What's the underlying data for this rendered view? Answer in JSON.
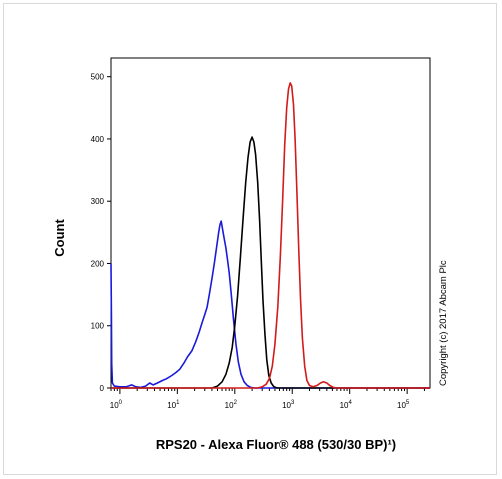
{
  "chart_data": {
    "type": "line",
    "title": "",
    "xlabel": "RPS20 - Alexa Fluor® 488 (530/30 BP)¹)",
    "ylabel": "Count",
    "xscale": "log",
    "xlim": [
      0.7,
      250000
    ],
    "ylim": [
      0,
      530
    ],
    "grid": false,
    "legend": "none",
    "x_tick_labels": [
      {
        "value": 1,
        "base": "10",
        "exp": "0"
      },
      {
        "value": 10,
        "base": "10",
        "exp": "1"
      },
      {
        "value": 100,
        "base": "10",
        "exp": "2"
      },
      {
        "value": 1000,
        "base": "10",
        "exp": "3"
      },
      {
        "value": 10000,
        "base": "10",
        "exp": "4"
      },
      {
        "value": 100000,
        "base": "10",
        "exp": "5"
      }
    ],
    "y_ticks": [
      0,
      100,
      200,
      300,
      400,
      500
    ],
    "y_tick_labels": [
      "0",
      "100",
      "200",
      "300",
      "400",
      "500"
    ],
    "annotation": "Copyright (c) 2017 Abcam Plc",
    "series": [
      {
        "color": "#1a1adb",
        "points": [
          [
            0.7,
            200
          ],
          [
            0.71,
            120
          ],
          [
            0.72,
            40
          ],
          [
            0.74,
            8
          ],
          [
            0.8,
            3
          ],
          [
            1.0,
            2
          ],
          [
            1.3,
            2
          ],
          [
            1.6,
            5
          ],
          [
            1.9,
            2
          ],
          [
            2.3,
            1
          ],
          [
            2.8,
            3
          ],
          [
            3.3,
            8
          ],
          [
            3.8,
            5
          ],
          [
            4.5,
            8
          ],
          [
            5.5,
            12
          ],
          [
            6.5,
            15
          ],
          [
            8,
            20
          ],
          [
            9.5,
            25
          ],
          [
            11,
            30
          ],
          [
            13,
            40
          ],
          [
            15,
            50
          ],
          [
            18,
            60
          ],
          [
            21,
            75
          ],
          [
            24,
            90
          ],
          [
            27,
            105
          ],
          [
            30,
            118
          ],
          [
            33,
            130
          ],
          [
            36,
            150
          ],
          [
            40,
            175
          ],
          [
            44,
            200
          ],
          [
            48,
            225
          ],
          [
            52,
            248
          ],
          [
            55,
            262
          ],
          [
            58,
            268
          ],
          [
            62,
            252
          ],
          [
            66,
            238
          ],
          [
            70,
            225
          ],
          [
            75,
            205
          ],
          [
            80,
            185
          ],
          [
            87,
            150
          ],
          [
            95,
            110
          ],
          [
            105,
            70
          ],
          [
            115,
            42
          ],
          [
            128,
            22
          ],
          [
            145,
            10
          ],
          [
            165,
            4
          ],
          [
            190,
            1
          ],
          [
            220,
            0
          ],
          [
            250000,
            0
          ]
        ]
      },
      {
        "color": "#000000",
        "points": [
          [
            0.7,
            0
          ],
          [
            40,
            0
          ],
          [
            50,
            3
          ],
          [
            60,
            10
          ],
          [
            70,
            22
          ],
          [
            80,
            40
          ],
          [
            90,
            65
          ],
          [
            100,
            100
          ],
          [
            112,
            148
          ],
          [
            125,
            210
          ],
          [
            140,
            275
          ],
          [
            155,
            330
          ],
          [
            170,
            370
          ],
          [
            185,
            395
          ],
          [
            200,
            403
          ],
          [
            215,
            395
          ],
          [
            230,
            375
          ],
          [
            250,
            330
          ],
          [
            270,
            270
          ],
          [
            290,
            200
          ],
          [
            310,
            140
          ],
          [
            335,
            85
          ],
          [
            360,
            45
          ],
          [
            390,
            20
          ],
          [
            430,
            8
          ],
          [
            480,
            2
          ],
          [
            550,
            0
          ],
          [
            250000,
            0
          ]
        ]
      },
      {
        "color": "#d41a1a",
        "points": [
          [
            0.7,
            0
          ],
          [
            250,
            0
          ],
          [
            300,
            2
          ],
          [
            350,
            6
          ],
          [
            400,
            15
          ],
          [
            450,
            35
          ],
          [
            500,
            70
          ],
          [
            560,
            130
          ],
          [
            620,
            210
          ],
          [
            680,
            300
          ],
          [
            740,
            390
          ],
          [
            800,
            450
          ],
          [
            860,
            480
          ],
          [
            920,
            490
          ],
          [
            980,
            485
          ],
          [
            1050,
            455
          ],
          [
            1120,
            400
          ],
          [
            1200,
            320
          ],
          [
            1300,
            220
          ],
          [
            1400,
            140
          ],
          [
            1500,
            80
          ],
          [
            1650,
            35
          ],
          [
            1800,
            12
          ],
          [
            2000,
            4
          ],
          [
            2300,
            2
          ],
          [
            2700,
            4
          ],
          [
            3100,
            8
          ],
          [
            3500,
            10
          ],
          [
            4000,
            8
          ],
          [
            4500,
            4
          ],
          [
            5200,
            1
          ],
          [
            6000,
            0
          ],
          [
            250000,
            0
          ]
        ]
      }
    ]
  }
}
